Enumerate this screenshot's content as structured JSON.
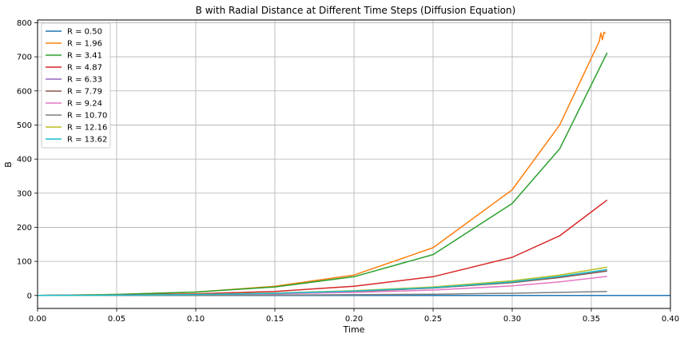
{
  "chart_data": {
    "type": "line",
    "title": "B with Radial Distance at Different Time Steps (Diffusion Equation)",
    "xlabel": "Time",
    "ylabel": "B",
    "xlim": [
      0.0,
      0.4
    ],
    "ylim": [
      -38,
      808
    ],
    "xticks": [
      "0.00",
      "0.05",
      "0.10",
      "0.15",
      "0.20",
      "0.25",
      "0.30",
      "0.35",
      "0.40"
    ],
    "yticks": [
      "0",
      "100",
      "200",
      "300",
      "400",
      "500",
      "600",
      "700",
      "800"
    ],
    "grid": true,
    "legend_position": "top-left",
    "series": [
      {
        "name": "R = 0.50",
        "color": "#1f77b4",
        "x": [
          0,
          0.4
        ],
        "y": [
          0,
          0
        ]
      },
      {
        "name": "R = 1.96",
        "color": "#ff7f0e",
        "x": [
          0,
          0.05,
          0.1,
          0.15,
          0.2,
          0.25,
          0.3,
          0.33,
          0.355,
          0.356,
          0.357,
          0.358,
          0.359
        ],
        "y": [
          0,
          3,
          10,
          27,
          60,
          140,
          310,
          500,
          745,
          770,
          750,
          772,
          768
        ]
      },
      {
        "name": "R = 3.41",
        "color": "#2ca02c",
        "x": [
          0,
          0.05,
          0.1,
          0.15,
          0.2,
          0.25,
          0.3,
          0.33,
          0.36
        ],
        "y": [
          0,
          3,
          10,
          25,
          55,
          120,
          270,
          430,
          712
        ]
      },
      {
        "name": "R = 4.87",
        "color": "#d62728",
        "x": [
          0,
          0.05,
          0.1,
          0.15,
          0.2,
          0.25,
          0.3,
          0.33,
          0.36
        ],
        "y": [
          0,
          1.5,
          5,
          12,
          27,
          55,
          112,
          175,
          280
        ]
      },
      {
        "name": "R = 6.33",
        "color": "#9467bd",
        "x": [
          0,
          0.05,
          0.1,
          0.15,
          0.2,
          0.25,
          0.3,
          0.33,
          0.36
        ],
        "y": [
          0,
          0.8,
          2.5,
          6,
          12,
          22,
          38,
          53,
          72
        ]
      },
      {
        "name": "R = 7.79",
        "color": "#8c564b",
        "x": [
          0,
          0.05,
          0.1,
          0.15,
          0.2,
          0.25,
          0.3,
          0.33,
          0.36
        ],
        "y": [
          0,
          0.8,
          2.5,
          6,
          12,
          22,
          38,
          53,
          72
        ]
      },
      {
        "name": "R = 9.24",
        "color": "#e377c2",
        "x": [
          0,
          0.05,
          0.1,
          0.15,
          0.2,
          0.25,
          0.3,
          0.33,
          0.36
        ],
        "y": [
          0,
          0.6,
          2,
          5,
          9,
          16,
          28,
          40,
          56
        ]
      },
      {
        "name": "R = 10.70",
        "color": "#7f7f7f",
        "x": [
          0,
          0.05,
          0.1,
          0.15,
          0.2,
          0.25,
          0.3,
          0.33,
          0.36
        ],
        "y": [
          0,
          0.2,
          0.5,
          1.2,
          2.2,
          3.8,
          6.5,
          9,
          12
        ]
      },
      {
        "name": "R = 12.16",
        "color": "#bcbd22",
        "x": [
          0,
          0.05,
          0.1,
          0.15,
          0.2,
          0.25,
          0.3,
          0.33,
          0.36
        ],
        "y": [
          0,
          1,
          3,
          7,
          14,
          25,
          43,
          60,
          83
        ]
      },
      {
        "name": "R = 13.62",
        "color": "#17becf",
        "x": [
          0,
          0.05,
          0.1,
          0.15,
          0.2,
          0.25,
          0.3,
          0.33,
          0.36
        ],
        "y": [
          0,
          0.9,
          2.8,
          6.5,
          13,
          23,
          40,
          56,
          76
        ]
      }
    ]
  }
}
